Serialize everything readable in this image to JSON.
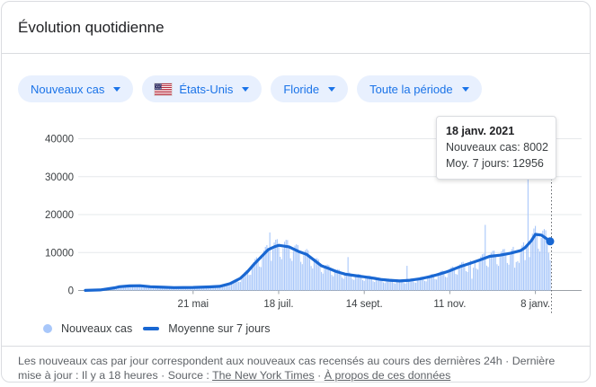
{
  "card": {
    "title": "Évolution quotidienne"
  },
  "filters": {
    "metric": {
      "label": "Nouveaux cas"
    },
    "country": {
      "label": "États-Unis",
      "flag": "drapeau-etats-unis"
    },
    "region": {
      "label": "Floride"
    },
    "period": {
      "label": "Toute la période"
    }
  },
  "tooltip": {
    "date": "18 janv. 2021",
    "cases_line": "Nouveaux cas: 8002",
    "avg_line": "Moy. 7 jours: 12956"
  },
  "legend": {
    "bars_label": "Nouveaux cas",
    "line_label": "Moyenne sur 7 jours"
  },
  "footer": {
    "text1": "Les nouveaux cas par jour correspondent aux nouveaux cas recensés au cours des dernières 24h",
    "separator": "·",
    "text2": "Dernière mise à jour : Il y a 18 heures",
    "source_label": "Source :",
    "source_link": "The New York Times",
    "about_link": "À propos de ces données"
  },
  "colors": {
    "accent_blue": "#1a73e8",
    "chip_bg": "#e8f0fe",
    "bars": "#a8c7fa",
    "line": "#1967d2",
    "grid": "#e6e8eb",
    "axis": "#9aa0a6",
    "tick_text": "#3c4043",
    "dotted_cursor": "#5f6368"
  },
  "chart_data": {
    "type": "bar",
    "title": "Évolution quotidienne — Nouveaux cas, Floride, États-Unis, toute la période",
    "ylim": [
      0,
      40000
    ],
    "y_ticks": [
      0,
      10000,
      20000,
      30000,
      40000
    ],
    "x_ticks": [
      {
        "day": 73,
        "label": "21 mai"
      },
      {
        "day": 131,
        "label": "18 juil."
      },
      {
        "day": 189,
        "label": "14 sept."
      },
      {
        "day": 247,
        "label": "11 nov."
      },
      {
        "day": 305,
        "label": "8 janv."
      }
    ],
    "n_days": 316,
    "grid": true,
    "legend_position": "bottom",
    "selected_point": {
      "day": 315,
      "date": "18 janv. 2021",
      "nouveaux_cas": 8002,
      "moyenne_7_jours": 12956
    },
    "series": [
      {
        "name": "Nouveaux cas",
        "type": "bar",
        "color": "#a8c7fa",
        "values": [
          20,
          40,
          60,
          80,
          90,
          90,
          80,
          80,
          120,
          150,
          170,
          240,
          260,
          240,
          260,
          400,
          530,
          620,
          680,
          650,
          530,
          560,
          860,
          1100,
          1180,
          1220,
          1090,
          840,
          800,
          1110,
          1320,
          1390,
          1400,
          1220,
          920,
          870,
          1180,
          1380,
          1400,
          1360,
          1140,
          830,
          750,
          980,
          1100,
          1130,
          1110,
          950,
          700,
          640,
          860,
          970,
          1000,
          980,
          840,
          620,
          570,
          750,
          860,
          880,
          860,
          750,
          570,
          530,
          730,
          850,
          890,
          890,
          780,
          590,
          550,
          750,
          880,
          920,
          940,
          830,
          630,
          600,
          820,
          970,
          1030,
          1050,
          920,
          700,
          670,
          920,
          1090,
          1170,
          1190,
          1060,
          810,
          770,
          1140,
          1430,
          1610,
          1730,
          1600,
          1280,
          1260,
          1900,
          2420,
          2760,
          2990,
          2800,
          2250,
          2240,
          3380,
          4310,
          4920,
          5340,
          5000,
          4090,
          4130,
          6030,
          7480,
          8280,
          8740,
          8000,
          6300,
          6160,
          8740,
          10560,
          11500,
          11960,
          10800,
          15300,
          7810,
          10760,
          12650,
          13380,
          13530,
          11900,
          8880,
          8250,
          11140,
          12840,
          13360,
          13290,
          11500,
          8490,
          7790,
          10400,
          11830,
          12160,
          11940,
          10200,
          7550,
          6940,
          9290,
          10600,
          10930,
          10580,
          8900,
          6450,
          5810,
          7600,
          8470,
          8510,
          8170,
          6800,
          4880,
          4450,
          5910,
          6690,
          6830,
          6670,
          5640,
          4110,
          3720,
          4900,
          5500,
          5620,
          5480,
          4650,
          3400,
          3090,
          4090,
          4670,
          8800,
          4750,
          4070,
          3010,
          2770,
          3710,
          4240,
          4370,
          4310,
          3700,
          2740,
          2520,
          3370,
          3830,
          3940,
          3880,
          3310,
          2440,
          2240,
          2970,
          3360,
          3420,
          3340,
          2870,
          2130,
          1960,
          2630,
          3010,
          3110,
          3070,
          2640,
          1960,
          1810,
          2430,
          2780,
          2880,
          2910,
          2560,
          1940,
          1830,
          6500,
          2940,
          3110,
          3170,
          2810,
          2150,
          2050,
          2840,
          3350,
          3570,
          3660,
          3270,
          2520,
          2410,
          3350,
          3980,
          4260,
          4370,
          3900,
          3000,
          2880,
          4020,
          4780,
          5130,
          5260,
          4690,
          3600,
          3450,
          4810,
          5720,
          6160,
          6340,
          5670,
          4370,
          4190,
          5840,
          6930,
          7390,
          7540,
          6690,
          5110,
          4860,
          6720,
          7920,
          3100,
          6000,
          7600,
          5800,
          5510,
          7600,
          8960,
          9530,
          9740,
          17300,
          6540,
          6200,
          8550,
          9950,
          10450,
          10500,
          9170,
          6910,
          6480,
          8840,
          10310,
          10860,
          10940,
          9590,
          7240,
          6810,
          9310,
          10890,
          11500,
          6000,
          7500,
          7730,
          7280,
          9880,
          11840,
          12690,
          8000,
          11730,
          32000,
          8800,
          12350,
          14960,
          16330,
          17020,
          14750,
          11030,
          10260,
          13870,
          15770,
          16180,
          15870,
          13520,
          9930,
          8002
        ]
      },
      {
        "name": "Moyenne sur 7 jours",
        "type": "line",
        "color": "#1967d2",
        "points": [
          [
            0,
            30
          ],
          [
            10,
            150
          ],
          [
            20,
            700
          ],
          [
            23,
            1000
          ],
          [
            30,
            1200
          ],
          [
            37,
            1250
          ],
          [
            44,
            1000
          ],
          [
            53,
            850
          ],
          [
            60,
            750
          ],
          [
            73,
            800
          ],
          [
            84,
            950
          ],
          [
            91,
            1100
          ],
          [
            98,
            1800
          ],
          [
            105,
            3200
          ],
          [
            110,
            5000
          ],
          [
            114,
            6800
          ],
          [
            119,
            8800
          ],
          [
            124,
            10800
          ],
          [
            128,
            11500
          ],
          [
            131,
            11900
          ],
          [
            138,
            11500
          ],
          [
            145,
            10200
          ],
          [
            150,
            9500
          ],
          [
            155,
            8000
          ],
          [
            160,
            6500
          ],
          [
            165,
            5800
          ],
          [
            170,
            5000
          ],
          [
            176,
            4300
          ],
          [
            183,
            3900
          ],
          [
            189,
            3600
          ],
          [
            196,
            3200
          ],
          [
            200,
            2900
          ],
          [
            206,
            2700
          ],
          [
            213,
            2500
          ],
          [
            220,
            2700
          ],
          [
            227,
            3100
          ],
          [
            234,
            3700
          ],
          [
            237,
            4000
          ],
          [
            244,
            4800
          ],
          [
            247,
            5200
          ],
          [
            254,
            6300
          ],
          [
            261,
            7200
          ],
          [
            267,
            8000
          ],
          [
            274,
            9000
          ],
          [
            281,
            9300
          ],
          [
            288,
            9800
          ],
          [
            295,
            10500
          ],
          [
            298,
            11300
          ],
          [
            302,
            13000
          ],
          [
            305,
            14800
          ],
          [
            309,
            14600
          ],
          [
            312,
            13800
          ],
          [
            315,
            12956
          ]
        ]
      }
    ]
  }
}
